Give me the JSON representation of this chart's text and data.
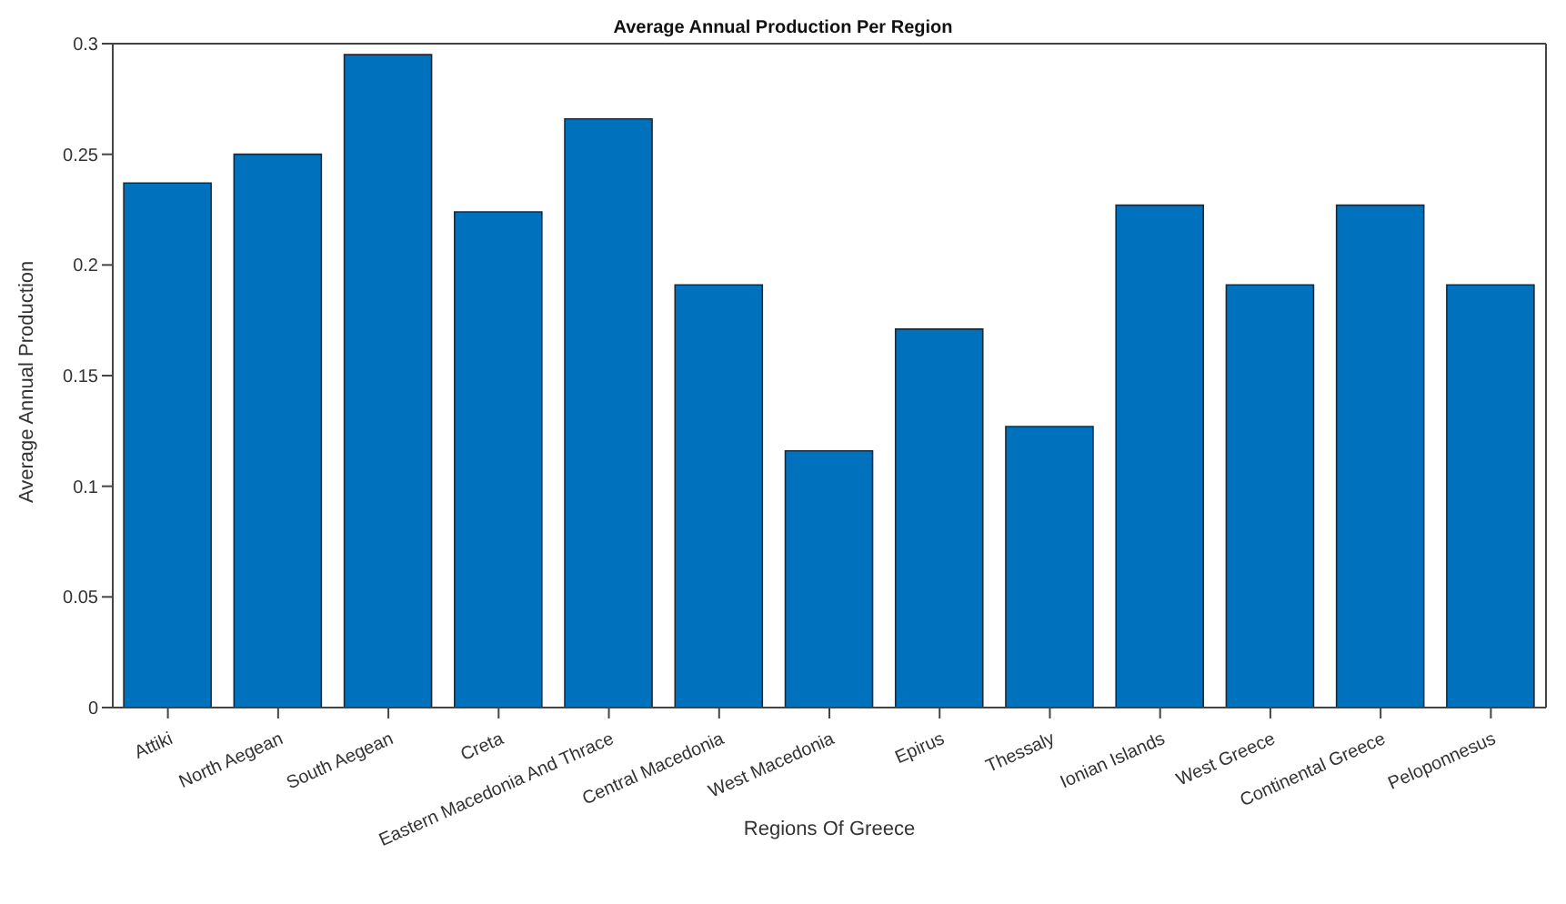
{
  "chart_data": {
    "type": "bar",
    "title": "Average Annual Production Per Region",
    "xlabel": "Regions Of Greece",
    "ylabel": "Average Annual Production",
    "categories": [
      "Attiki",
      "North Aegean",
      "South Aegean",
      "Creta",
      "Eastern Macedonia And Thrace",
      "Central Macedonia",
      "West Macedonia",
      "Epirus",
      "Thessaly",
      "Ionian Islands",
      "West Greece",
      "Continental Greece",
      "Peloponnesus"
    ],
    "values": [
      0.237,
      0.25,
      0.295,
      0.224,
      0.266,
      0.191,
      0.116,
      0.171,
      0.127,
      0.227,
      0.191,
      0.227,
      0.191
    ],
    "color": "#0072bd",
    "ylim": [
      0,
      0.3
    ],
    "yticks": [
      0,
      0.05,
      0.1,
      0.15,
      0.2,
      0.25,
      0.3
    ],
    "grid": false,
    "legend": false
  }
}
